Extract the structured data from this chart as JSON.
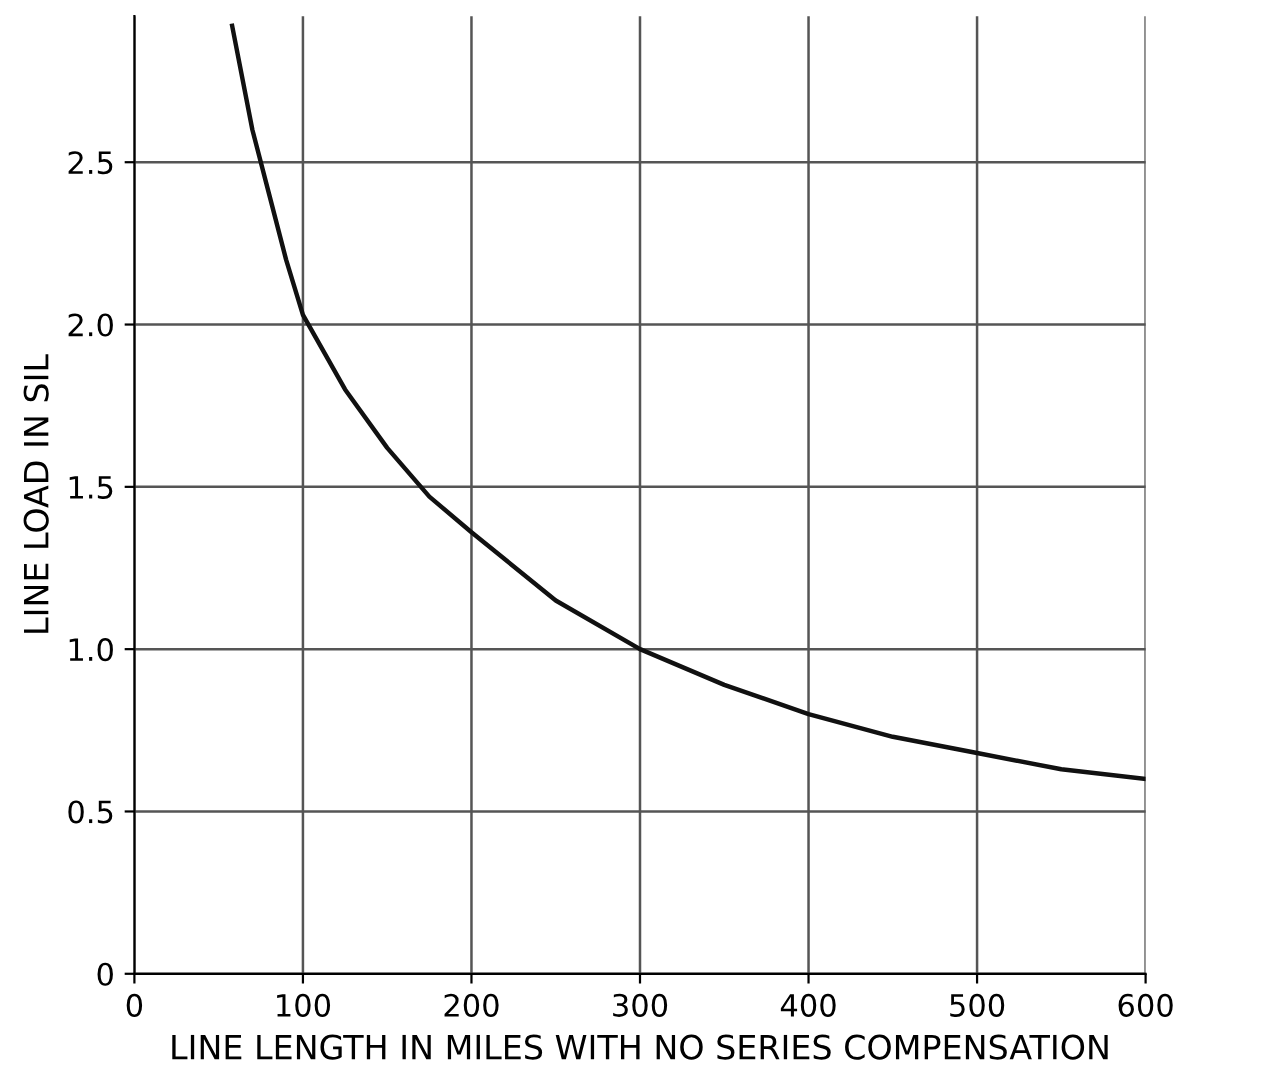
{
  "chart_data": {
    "type": "line",
    "xlabel": "LINE LENGTH IN MILES WITH NO SERIES COMPENSATION",
    "ylabel": "LINE LOAD IN SIL",
    "x": [
      58,
      70,
      80,
      90,
      100,
      125,
      150,
      175,
      200,
      250,
      300,
      350,
      400,
      450,
      500,
      550,
      600
    ],
    "series": [
      {
        "color": "#111111",
        "values": [
          2.92,
          2.6,
          2.4,
          2.2,
          2.03,
          1.8,
          1.62,
          1.47,
          1.36,
          1.15,
          1.0,
          0.89,
          0.8,
          0.73,
          0.68,
          0.63,
          0.6
        ]
      }
    ],
    "xlim": [
      0,
      600
    ],
    "ylim": [
      0,
      2.95
    ],
    "xticks": [
      0,
      100,
      200,
      300,
      400,
      500,
      600
    ],
    "yticks": [
      0,
      {
        "value": 0.5,
        "label": "0.5"
      },
      {
        "value": 1.0,
        "label": "1.0"
      },
      {
        "value": 1.5,
        "label": "1.5"
      },
      {
        "value": 2.0,
        "label": "2.0"
      },
      {
        "value": 2.5,
        "label": "2.5"
      }
    ],
    "grid": true,
    "line_style": "solid",
    "marker": "none"
  }
}
